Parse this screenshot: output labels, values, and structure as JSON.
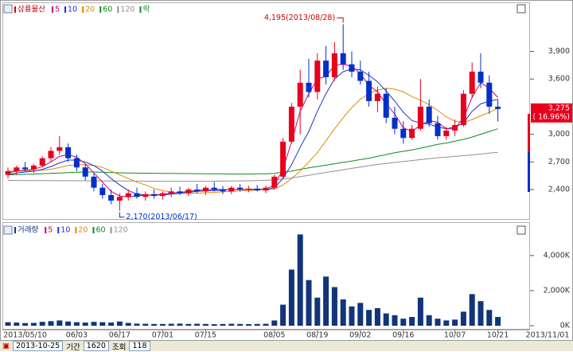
{
  "chart_data": {
    "type": "candlestick",
    "title": "삼륭물산",
    "title_color": "#d00000",
    "legend": [
      {
        "name": "5",
        "color": "#d0006f"
      },
      {
        "name": "10",
        "color": "#2030d0"
      },
      {
        "name": "20",
        "color": "#e08a00"
      },
      {
        "name": "60",
        "color": "#108a20"
      },
      {
        "name": "120",
        "color": "#909090"
      },
      {
        "name": "락",
        "color": "#108a20"
      }
    ],
    "categories": [
      null,
      null,
      "2013/05/10",
      null,
      null,
      null,
      null,
      null,
      "06/03",
      null,
      null,
      null,
      null,
      "06/17",
      null,
      null,
      null,
      null,
      "07/01",
      null,
      null,
      null,
      null,
      "07/15",
      null,
      null,
      null,
      null,
      null,
      null,
      null,
      "08/05",
      null,
      null,
      null,
      null,
      "08/19",
      null,
      null,
      null,
      null,
      "09/02",
      null,
      null,
      null,
      null,
      "09/16",
      null,
      null,
      null,
      null,
      null,
      "10/07",
      null,
      null,
      null,
      null,
      "10/21"
    ],
    "x_end_label": "2013/11/01",
    "open": [
      2560,
      2600,
      2640,
      2620,
      2660,
      2740,
      2820,
      2860,
      2740,
      2640,
      2540,
      2420,
      2340,
      2280,
      2320,
      2360,
      2320,
      2350,
      2330,
      2360,
      2380,
      2360,
      2400,
      2380,
      2420,
      2400,
      2380,
      2420,
      2400,
      2410,
      2390,
      2420,
      2540,
      2920,
      3300,
      3560,
      3460,
      3800,
      3620,
      3880,
      3760,
      3680,
      3580,
      3360,
      3440,
      3180,
      3060,
      2960,
      3060,
      3300,
      3120,
      2980,
      3040,
      3100,
      3440,
      3680,
      3560,
      3300
    ],
    "high": [
      2640,
      2660,
      2700,
      2680,
      2760,
      2860,
      2980,
      2900,
      2780,
      2680,
      2580,
      2460,
      2400,
      2360,
      2400,
      2420,
      2380,
      2400,
      2380,
      2420,
      2430,
      2420,
      2460,
      2440,
      2480,
      2440,
      2440,
      2460,
      2440,
      2450,
      2440,
      2560,
      2960,
      3340,
      3700,
      3820,
      3880,
      3960,
      4000,
      4195,
      3900,
      3800,
      3680,
      3520,
      3500,
      3300,
      3140,
      3100,
      3600,
      3380,
      3200,
      3080,
      3160,
      3480,
      3780,
      3880,
      3640,
      3380
    ],
    "low": [
      2520,
      2560,
      2600,
      2580,
      2640,
      2700,
      2780,
      2700,
      2600,
      2500,
      2380,
      2300,
      2240,
      2170,
      2280,
      2300,
      2280,
      2300,
      2290,
      2320,
      2340,
      2330,
      2360,
      2340,
      2380,
      2350,
      2350,
      2380,
      2370,
      2380,
      2360,
      2400,
      2520,
      2900,
      3000,
      3400,
      3380,
      3540,
      3580,
      3700,
      3620,
      3540,
      3300,
      3240,
      3120,
      3000,
      2900,
      2940,
      3040,
      3080,
      2940,
      2940,
      2980,
      3080,
      3400,
      3500,
      3220,
      3140
    ],
    "close": [
      2600,
      2640,
      2620,
      2660,
      2740,
      2820,
      2860,
      2740,
      2640,
      2540,
      2420,
      2340,
      2280,
      2320,
      2360,
      2320,
      2350,
      2330,
      2360,
      2380,
      2360,
      2400,
      2380,
      2420,
      2400,
      2380,
      2420,
      2400,
      2410,
      2390,
      2420,
      2540,
      2920,
      3300,
      3560,
      3460,
      3800,
      3620,
      3880,
      3760,
      3680,
      3580,
      3360,
      3440,
      3180,
      3060,
      2960,
      3060,
      3300,
      3120,
      2980,
      3040,
      3100,
      3440,
      3680,
      3560,
      3300,
      3275
    ],
    "up_color": "#e8001c",
    "down_color": "#0030c8",
    "ylim": [
      2080,
      4415
    ],
    "yticks": [
      {
        "value": 2400,
        "label": "2,400"
      },
      {
        "value": 2700,
        "label": "2,700"
      },
      {
        "value": 3000,
        "label": "3,000"
      },
      {
        "value": 3600,
        "label": "3,600"
      },
      {
        "value": 3900,
        "label": "3,900"
      }
    ],
    "moving_averages": [
      {
        "name": "5",
        "color": "#d0006f",
        "values": [
          2580,
          2600,
          2610,
          2620,
          2650,
          2700,
          2760,
          2780,
          2750,
          2680,
          2580,
          2480,
          2380,
          2330,
          2320,
          2330,
          2340,
          2340,
          2350,
          2360,
          2370,
          2380,
          2390,
          2400,
          2400,
          2400,
          2400,
          2400,
          2405,
          2400,
          2405,
          2450,
          2620,
          2920,
          3250,
          3440,
          3600,
          3630,
          3750,
          3760,
          3740,
          3660,
          3530,
          3460,
          3330,
          3220,
          3070,
          3030,
          3100,
          3150,
          3130,
          3060,
          3060,
          3180,
          3400,
          3560,
          3500,
          3400
        ]
      },
      {
        "name": "10",
        "color": "#2030d0",
        "values": [
          2560,
          2580,
          2590,
          2600,
          2620,
          2650,
          2690,
          2720,
          2720,
          2700,
          2660,
          2600,
          2520,
          2450,
          2390,
          2350,
          2340,
          2340,
          2340,
          2350,
          2360,
          2370,
          2380,
          2385,
          2390,
          2395,
          2400,
          2400,
          2400,
          2400,
          2400,
          2420,
          2520,
          2670,
          2860,
          3030,
          3250,
          3440,
          3600,
          3680,
          3710,
          3700,
          3640,
          3570,
          3470,
          3360,
          3240,
          3150,
          3120,
          3110,
          3080,
          3060,
          3080,
          3120,
          3250,
          3330,
          3360,
          3380
        ]
      },
      {
        "name": "20",
        "color": "#e08a00",
        "values": [
          2600,
          2600,
          2600,
          2605,
          2610,
          2620,
          2640,
          2660,
          2670,
          2670,
          2660,
          2640,
          2600,
          2560,
          2520,
          2480,
          2450,
          2410,
          2390,
          2370,
          2360,
          2360,
          2360,
          2365,
          2370,
          2375,
          2380,
          2385,
          2390,
          2395,
          2400,
          2405,
          2450,
          2520,
          2600,
          2700,
          2800,
          2930,
          3060,
          3180,
          3290,
          3380,
          3440,
          3480,
          3500,
          3490,
          3460,
          3410,
          3370,
          3320,
          3260,
          3190,
          3140,
          3130,
          3160,
          3200,
          3240,
          3280
        ]
      },
      {
        "name": "60",
        "color": "#108a20",
        "values": [
          2560,
          2562,
          2565,
          2568,
          2572,
          2576,
          2580,
          2584,
          2588,
          2590,
          2590,
          2588,
          2585,
          2582,
          2580,
          2578,
          2577,
          2576,
          2575,
          2575,
          2574,
          2573,
          2572,
          2571,
          2570,
          2570,
          2569,
          2569,
          2569,
          2570,
          2570,
          2575,
          2590,
          2600,
          2620,
          2635,
          2650,
          2665,
          2680,
          2695,
          2710,
          2725,
          2740,
          2760,
          2780,
          2800,
          2815,
          2830,
          2850,
          2870,
          2890,
          2905,
          2925,
          2945,
          2970,
          3000,
          3030,
          3060
        ]
      },
      {
        "name": "120",
        "color": "#909090",
        "values": [
          2500,
          2499,
          2498,
          2498,
          2497,
          2497,
          2496,
          2496,
          2495,
          2495,
          2494,
          2494,
          2493,
          2493,
          2492,
          2492,
          2491,
          2491,
          2490,
          2490,
          2490,
          2490,
          2490,
          2490,
          2491,
          2492,
          2493,
          2494,
          2495,
          2497,
          2500,
          2505,
          2515,
          2525,
          2540,
          2555,
          2570,
          2585,
          2600,
          2615,
          2630,
          2645,
          2660,
          2672,
          2684,
          2695,
          2705,
          2715,
          2725,
          2735,
          2745,
          2752,
          2760,
          2768,
          2776,
          2785,
          2795,
          2805
        ]
      }
    ],
    "annotations": [
      {
        "text": "4,195(2013/08/28)",
        "value": 4195,
        "color": "#d00000"
      },
      {
        "text": "2,170(2013/06/17)",
        "value": 2170,
        "color": "#0030c8"
      }
    ],
    "last_price": {
      "value": 3275,
      "label": "3,275"
    },
    "change": {
      "value": 16.96,
      "label": "( 16.96%)"
    },
    "volume": {
      "type": "bar",
      "title": "거래량",
      "legend": [
        {
          "name": "5",
          "color": "#d0006f"
        },
        {
          "name": "10",
          "color": "#2030d0"
        },
        {
          "name": "20",
          "color": "#e08a00"
        },
        {
          "name": "60",
          "color": "#108a20"
        },
        {
          "name": "120",
          "color": "#909090"
        }
      ],
      "color": "#12357a",
      "values": [
        200000,
        180000,
        150000,
        160000,
        220000,
        260000,
        300000,
        240000,
        200000,
        180000,
        220000,
        200000,
        180000,
        240000,
        160000,
        120000,
        110000,
        100000,
        100000,
        110000,
        120000,
        100000,
        110000,
        100000,
        90000,
        100000,
        110000,
        100000,
        90000,
        100000,
        110000,
        300000,
        1200000,
        3200000,
        5200000,
        2600000,
        1600000,
        2800000,
        2200000,
        1500000,
        1100000,
        1300000,
        900000,
        1000000,
        700000,
        600000,
        400000,
        500000,
        1600000,
        600000,
        400000,
        300000,
        350000,
        800000,
        1800000,
        1400000,
        900000,
        500000
      ],
      "ylim": [
        0,
        5400000
      ],
      "yticks": [
        {
          "value": 0,
          "label": "0K"
        },
        {
          "value": 2000000,
          "label": "2,000K"
        },
        {
          "value": 4000000,
          "label": "4,000K"
        }
      ]
    }
  },
  "toolbar": {
    "date": "2013-10-25",
    "period_label": "기간",
    "period": "1620",
    "query_label": "조회",
    "count": "118"
  }
}
